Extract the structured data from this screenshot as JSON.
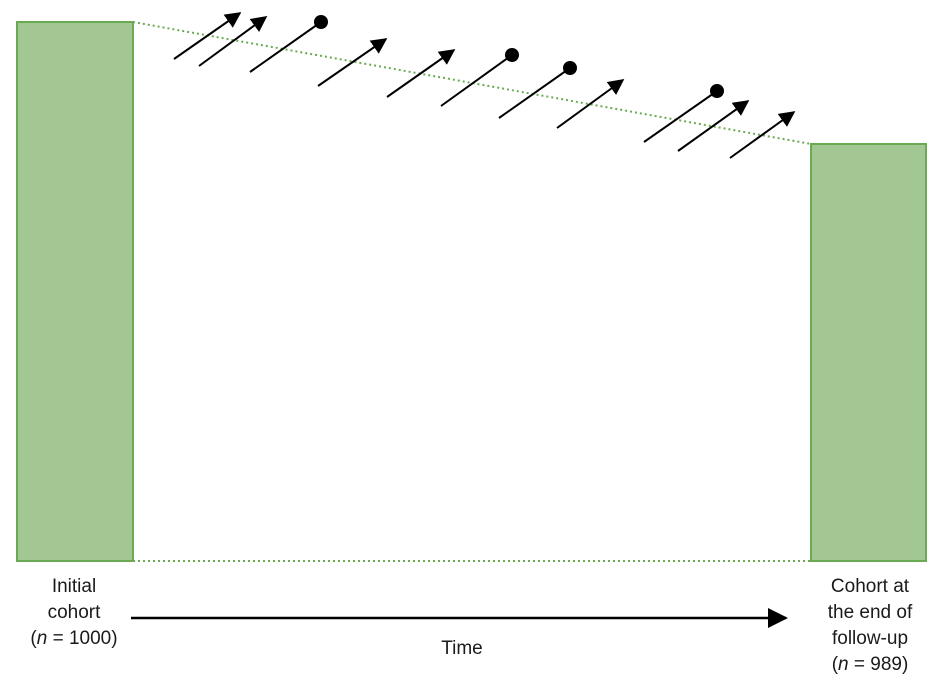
{
  "colors": {
    "bar_fill": "#a3c793",
    "bar_stroke": "#6aaa53",
    "dotted_line": "#6aaa53",
    "arrow": "#000000"
  },
  "initial_cohort": {
    "line1": "Initial",
    "line2": "cohort",
    "n_prefix": "(",
    "n_var": "n",
    "n_suffix": " = 1000)",
    "n": 1000
  },
  "final_cohort": {
    "line1": "Cohort at",
    "line2": "the end of",
    "line3": "follow-up",
    "n_prefix": "(",
    "n_var": "n",
    "n_suffix": " = 989)",
    "n": 989
  },
  "time_axis": {
    "label": "Time"
  },
  "exits": {
    "arrow_icon": "arrow-icon",
    "dot_icon": "dot-terminated-arrow-icon",
    "arrow_count": 11,
    "dot_count": 4
  }
}
